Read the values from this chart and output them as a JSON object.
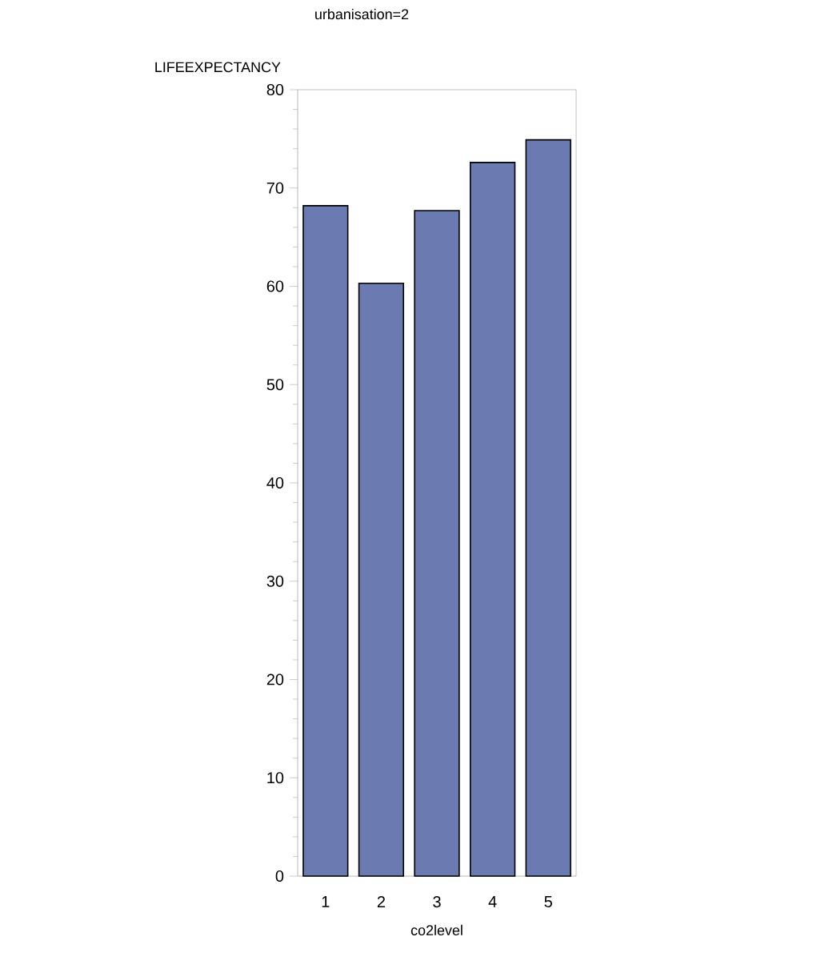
{
  "chart_data": {
    "type": "bar",
    "title": "urbanisation=2",
    "xlabel": "co2level",
    "ylabel": "LIFEEXPECTANCY",
    "categories": [
      "1",
      "2",
      "3",
      "4",
      "5"
    ],
    "values": [
      68.2,
      60.3,
      67.7,
      72.6,
      74.9
    ],
    "color": "#6b7bb2",
    "ylim": [
      0,
      80
    ],
    "yticks": [
      0,
      10,
      20,
      30,
      40,
      50,
      60,
      70,
      80
    ],
    "grid": false
  }
}
